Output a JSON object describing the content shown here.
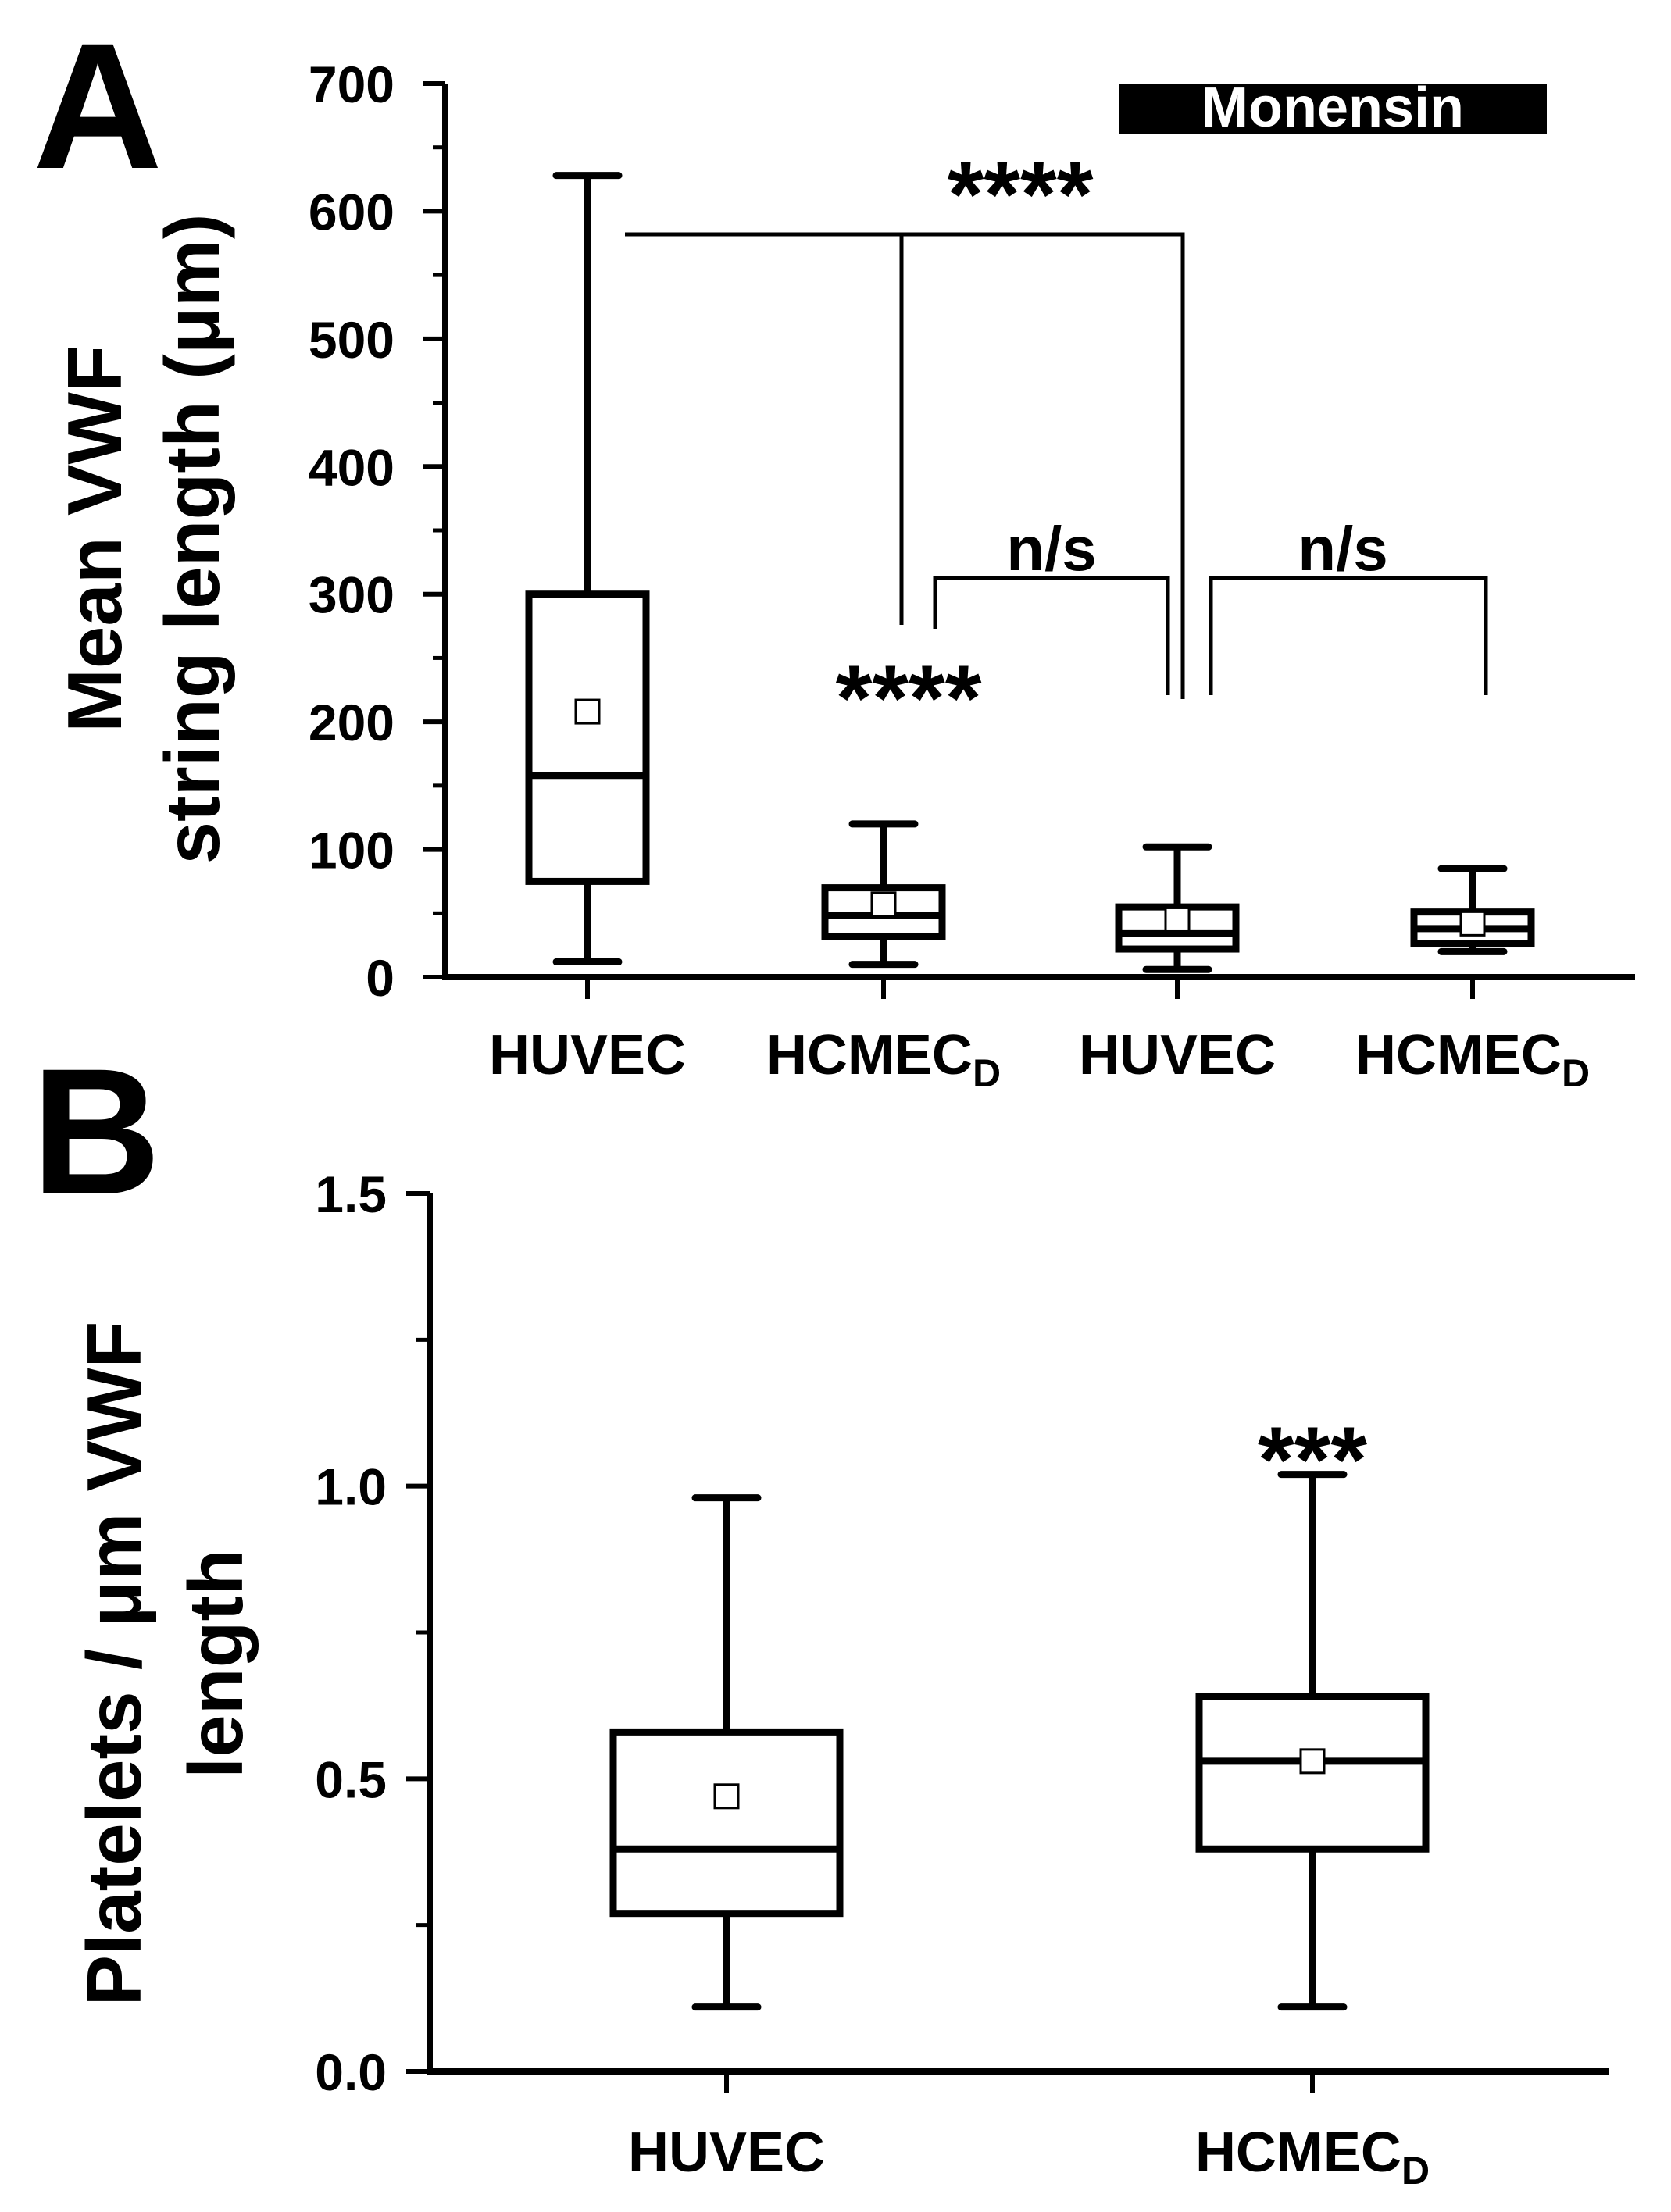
{
  "chart_data": [
    {
      "panel": "A",
      "type": "box",
      "ylabel_line1": "Mean VWF",
      "ylabel_line2": "string length (μm)",
      "ylim": [
        0,
        700
      ],
      "yticks": [
        0,
        100,
        200,
        300,
        400,
        500,
        600,
        700
      ],
      "ytick_labels": [
        "0",
        "100",
        "200",
        "300",
        "400",
        "500",
        "600",
        "700"
      ],
      "banner_label": "Monensin",
      "categories": [
        {
          "label": "HUVEC",
          "sub": ""
        },
        {
          "label": "HCMEC",
          "sub": "D"
        },
        {
          "label": "HUVEC",
          "sub": ""
        },
        {
          "label": "HCMEC",
          "sub": "D"
        }
      ],
      "boxes": [
        {
          "min": 12,
          "q1": 75,
          "median": 158,
          "q3": 300,
          "max": 628,
          "mean": 208
        },
        {
          "min": 10,
          "q1": 32,
          "median": 48,
          "q3": 70,
          "max": 120,
          "mean": 57
        },
        {
          "min": 6,
          "q1": 22,
          "median": 34,
          "q3": 55,
          "max": 102,
          "mean": 45
        },
        {
          "min": 20,
          "q1": 26,
          "median": 38,
          "q3": 51,
          "max": 85,
          "mean": 42
        }
      ],
      "annotations": {
        "top_stars": "****",
        "hcmec_stars": "****",
        "ns_left": "n/s",
        "ns_right": "n/s"
      }
    },
    {
      "panel": "B",
      "type": "box",
      "ylabel_line1": "Platelets / μm VWF",
      "ylabel_line2": "length",
      "ylim": [
        0,
        1.5
      ],
      "yticks": [
        0.0,
        0.5,
        1.0,
        1.5
      ],
      "ytick_labels": [
        "0.0",
        "0.5",
        "1.0",
        "1.5"
      ],
      "categories": [
        {
          "label": "HUVEC",
          "sub": ""
        },
        {
          "label": "HCMEC",
          "sub": "D"
        }
      ],
      "boxes": [
        {
          "min": 0.11,
          "q1": 0.27,
          "median": 0.38,
          "q3": 0.58,
          "max": 0.98,
          "mean": 0.47
        },
        {
          "min": 0.11,
          "q1": 0.38,
          "median": 0.53,
          "q3": 0.64,
          "max": 1.02,
          "mean": 0.53
        }
      ],
      "annotations": {
        "hcmec_stars": "***"
      }
    }
  ]
}
